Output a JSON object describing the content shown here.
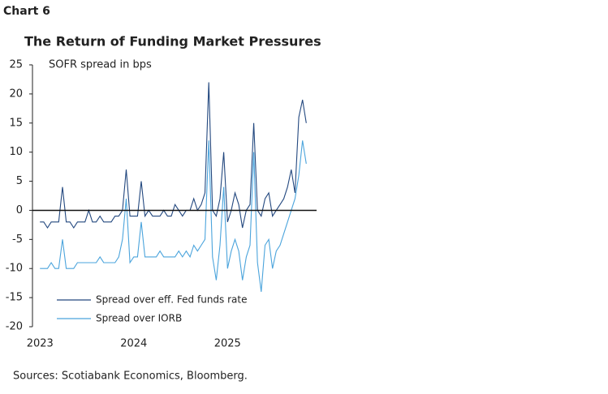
{
  "header": "Chart 6",
  "chart_data": {
    "type": "line",
    "title": "The Return of Funding Market Pressures",
    "y_label": "SOFR spread in bps",
    "source": "Sources: Scotiabank Economics,  Bloomberg.",
    "x": [
      2023.0,
      2023.04,
      2023.08,
      2023.12,
      2023.16,
      2023.2,
      2023.24,
      2023.28,
      2023.32,
      2023.36,
      2023.4,
      2023.44,
      2023.48,
      2023.52,
      2023.56,
      2023.6,
      2023.64,
      2023.68,
      2023.72,
      2023.76,
      2023.8,
      2023.84,
      2023.88,
      2023.92,
      2023.96,
      2024.0,
      2024.04,
      2024.08,
      2024.12,
      2024.16,
      2024.2,
      2024.24,
      2024.28,
      2024.32,
      2024.36,
      2024.4,
      2024.44,
      2024.48,
      2024.52,
      2024.56,
      2024.6,
      2024.64,
      2024.68,
      2024.72,
      2024.76,
      2024.8,
      2024.84,
      2024.88,
      2024.92,
      2024.96,
      2025.0,
      2025.04,
      2025.08,
      2025.12,
      2025.16,
      2025.2,
      2025.24,
      2025.28,
      2025.32,
      2025.36,
      2025.4,
      2025.44,
      2025.48,
      2025.52,
      2025.56,
      2025.6,
      2025.64,
      2025.68,
      2025.72,
      2025.76,
      2025.8,
      2025.84
    ],
    "series": [
      {
        "name": "Spread over eff. Fed funds rate",
        "color": "#23487f",
        "values": [
          -2,
          -2,
          -3,
          -2,
          -2,
          -2,
          4,
          -2,
          -2,
          -3,
          -2,
          -2,
          -2,
          0,
          -2,
          -2,
          -1,
          -2,
          -2,
          -2,
          -1,
          -1,
          0,
          7,
          -1,
          -1,
          -1,
          5,
          -1,
          0,
          -1,
          -1,
          -1,
          0,
          -1,
          -1,
          1,
          0,
          -1,
          0,
          0,
          2,
          0,
          1,
          3,
          22,
          0,
          -1,
          2,
          10,
          -2,
          0,
          3,
          1,
          -3,
          0,
          1,
          15,
          0,
          -1,
          2,
          3,
          -1,
          0,
          1,
          2,
          4,
          7,
          3,
          16,
          19,
          15
        ]
      },
      {
        "name": "Spread over IORB",
        "color": "#4ba4dc",
        "values": [
          -10,
          -10,
          -10,
          -9,
          -10,
          -10,
          -5,
          -10,
          -10,
          -10,
          -9,
          -9,
          -9,
          -9,
          -9,
          -9,
          -8,
          -9,
          -9,
          -9,
          -9,
          -8,
          -5,
          2,
          -9,
          -8,
          -8,
          -2,
          -8,
          -8,
          -8,
          -8,
          -7,
          -8,
          -8,
          -8,
          -8,
          -7,
          -8,
          -7,
          -8,
          -6,
          -7,
          -6,
          -5,
          12,
          -8,
          -12,
          -6,
          4,
          -10,
          -7,
          -5,
          -7,
          -12,
          -8,
          -6,
          10,
          -9,
          -14,
          -6,
          -5,
          -10,
          -7,
          -6,
          -4,
          -2,
          0,
          2,
          6,
          12,
          8
        ]
      }
    ],
    "xlim": [
      2022.92,
      2025.95
    ],
    "xticks": [
      2023,
      2024,
      2025
    ],
    "ylim": [
      -20,
      25
    ],
    "yticks": [
      -20,
      -15,
      -10,
      -5,
      0,
      5,
      10,
      15,
      20,
      25
    ]
  }
}
